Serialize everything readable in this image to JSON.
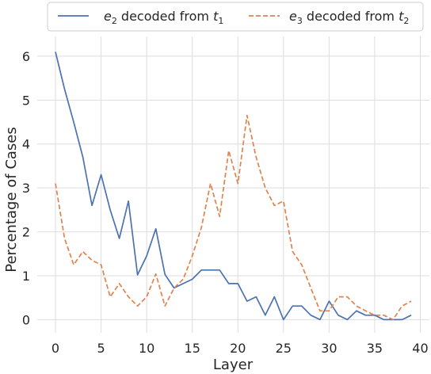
{
  "chart_data": {
    "type": "line",
    "xlabel": "Layer",
    "ylabel": "Percentage of Cases",
    "xlim": [
      -2,
      41
    ],
    "ylim": [
      -0.3,
      6.45
    ],
    "xticks": [
      0,
      5,
      10,
      15,
      20,
      25,
      30,
      35,
      40
    ],
    "yticks": [
      0,
      1,
      2,
      3,
      4,
      5,
      6
    ],
    "grid": true,
    "legend_position": "top",
    "x": [
      0,
      1,
      2,
      3,
      4,
      5,
      6,
      7,
      8,
      9,
      10,
      11,
      12,
      13,
      14,
      15,
      16,
      17,
      18,
      19,
      20,
      21,
      22,
      23,
      24,
      25,
      26,
      27,
      28,
      29,
      30,
      31,
      32,
      33,
      34,
      35,
      36,
      37,
      38,
      39
    ],
    "series": [
      {
        "legend_prefix": "e",
        "legend_sub1": "2",
        "legend_mid": " decoded from ",
        "legend_var": "t",
        "legend_sub2": "1",
        "color": "#4c72b0",
        "style": "solid",
        "values": [
          6.1,
          5.25,
          4.5,
          3.7,
          2.6,
          3.3,
          2.5,
          1.85,
          2.7,
          1.02,
          1.45,
          2.07,
          1.03,
          0.72,
          0.82,
          0.92,
          1.13,
          1.13,
          1.13,
          0.82,
          0.82,
          0.42,
          0.52,
          0.1,
          0.52,
          0.0,
          0.31,
          0.31,
          0.1,
          0.0,
          0.42,
          0.1,
          0.0,
          0.2,
          0.1,
          0.1,
          0.0,
          0.0,
          0.0,
          0.1
        ]
      },
      {
        "legend_prefix": "e",
        "legend_sub1": "3",
        "legend_mid": " decoded from ",
        "legend_var": "t",
        "legend_sub2": "2",
        "color": "#dd8452",
        "style": "dashed",
        "values": [
          3.1,
          1.85,
          1.25,
          1.55,
          1.35,
          1.25,
          0.52,
          0.82,
          0.52,
          0.31,
          0.52,
          1.04,
          0.31,
          0.72,
          0.92,
          1.45,
          2.1,
          3.1,
          2.35,
          3.85,
          3.1,
          4.65,
          3.7,
          3.0,
          2.6,
          2.7,
          1.55,
          1.25,
          0.72,
          0.2,
          0.2,
          0.52,
          0.52,
          0.31,
          0.2,
          0.1,
          0.1,
          0.0,
          0.31,
          0.42
        ]
      }
    ]
  }
}
